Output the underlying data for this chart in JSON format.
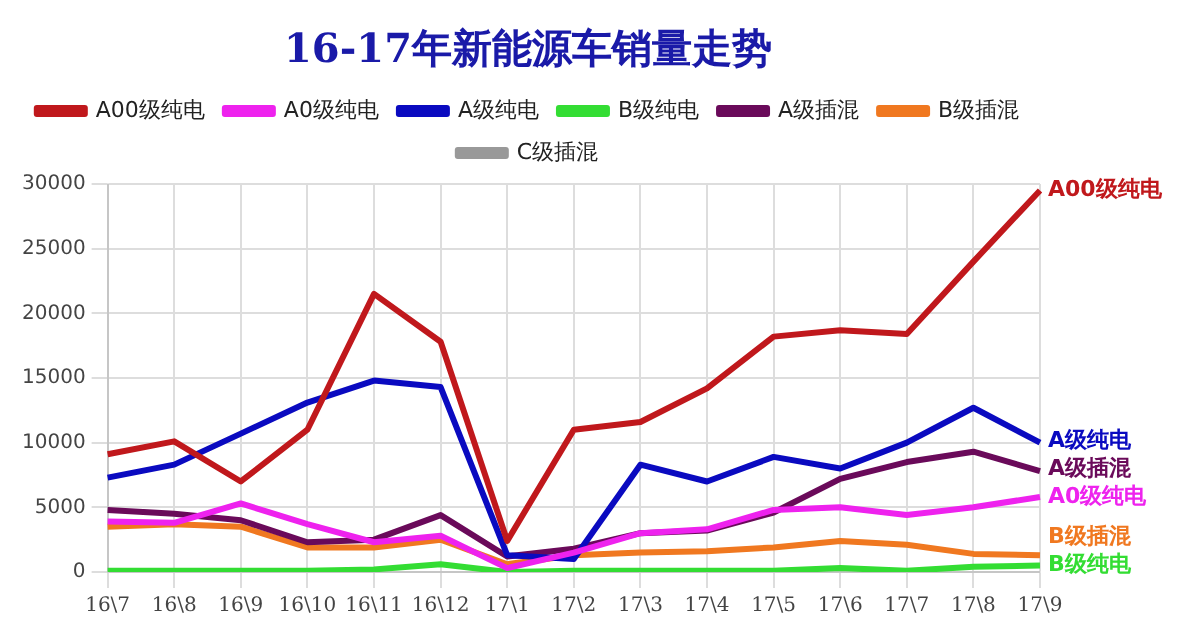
{
  "chart_data": {
    "type": "line",
    "title": "16-17年新能源车销量走势",
    "categories": [
      "16\\7",
      "16\\8",
      "16\\9",
      "16\\10",
      "16\\11",
      "16\\12",
      "17\\1",
      "17\\2",
      "17\\3",
      "17\\4",
      "17\\5",
      "17\\6",
      "17\\7",
      "17\\8",
      "17\\9"
    ],
    "series": [
      {
        "name": "A00级纯电",
        "color": "#c0181c",
        "values": [
          9100,
          10100,
          7000,
          11000,
          21500,
          17800,
          2400,
          11000,
          11600,
          14200,
          18200,
          18700,
          18400,
          24000,
          29500
        ]
      },
      {
        "name": "A0级纯电",
        "color": "#ee22ee",
        "values": [
          3900,
          3800,
          5300,
          3700,
          2300,
          2800,
          300,
          1500,
          3000,
          3300,
          4800,
          5000,
          4400,
          5000,
          5800
        ]
      },
      {
        "name": "A级纯电",
        "color": "#0a0ac0",
        "values": [
          7300,
          8300,
          10700,
          13100,
          14800,
          14300,
          1300,
          1000,
          8300,
          7000,
          8900,
          8000,
          10000,
          12700,
          10000
        ]
      },
      {
        "name": "B级纯电",
        "color": "#33dd33",
        "values": [
          100,
          100,
          100,
          100,
          200,
          600,
          0,
          100,
          100,
          100,
          100,
          300,
          100,
          400,
          500
        ]
      },
      {
        "name": "A级插混",
        "color": "#6a0a5a",
        "values": [
          4800,
          4500,
          4000,
          2300,
          2500,
          4400,
          1200,
          1800,
          3000,
          3200,
          4600,
          7200,
          8500,
          9300,
          7800
        ]
      },
      {
        "name": "B级插混",
        "color": "#f07820",
        "values": [
          3500,
          3700,
          3500,
          1900,
          1900,
          2500,
          600,
          1300,
          1500,
          1600,
          1900,
          2400,
          2100,
          1400,
          1300
        ]
      },
      {
        "name": "C级插混",
        "color": "#999999",
        "values": [
          null,
          null,
          null,
          null,
          null,
          null,
          null,
          null,
          null,
          null,
          null,
          null,
          null,
          null,
          null
        ]
      }
    ],
    "annotations": [
      {
        "text": "A00级纯电",
        "x": "17\\9",
        "y": 29500
      },
      {
        "text": "A级纯电",
        "x": "17\\9",
        "y": 10000
      },
      {
        "text": "A级插混",
        "x": "17\\9",
        "y": 7800
      },
      {
        "text": "A0级纯电",
        "x": "17\\9",
        "y": 5800
      },
      {
        "text": "B级插混",
        "x": "17\\9",
        "y": 1300
      },
      {
        "text": "B级纯电",
        "x": "17\\9",
        "y": 500
      }
    ],
    "ylim": [
      0,
      30000
    ],
    "yticks": [
      0,
      5000,
      10000,
      15000,
      20000,
      25000,
      30000
    ],
    "grid": true,
    "legend": "top",
    "marker": "none",
    "line_style": "solid"
  }
}
